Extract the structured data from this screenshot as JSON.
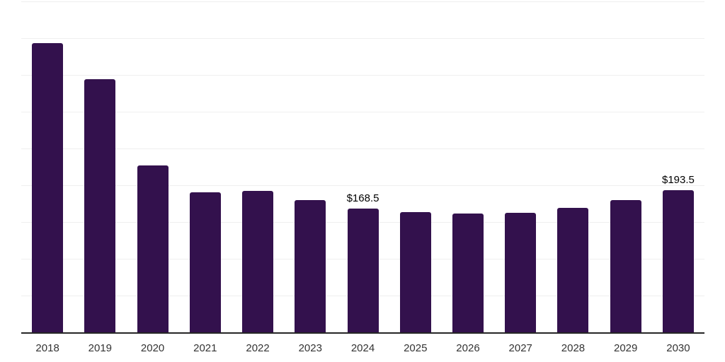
{
  "chart_data": {
    "type": "bar",
    "title": "",
    "xlabel": "",
    "ylabel": "",
    "categories": [
      "2018",
      "2019",
      "2020",
      "2021",
      "2022",
      "2023",
      "2024",
      "2025",
      "2026",
      "2027",
      "2028",
      "2029",
      "2030"
    ],
    "values": [
      393.5,
      344.0,
      227.0,
      190.5,
      192.5,
      180.0,
      168.5,
      163.5,
      161.5,
      162.5,
      169.5,
      180.0,
      193.5
    ],
    "data_labels": {
      "2024": "$168.5",
      "2030": "$193.5"
    },
    "ylim": [
      0,
      450
    ],
    "grid_step": 50,
    "grid": "on",
    "legend_position": "none",
    "colors": {
      "bar": "#33114d",
      "axis": "#262626",
      "gridline": "#efefef",
      "x_label": "#333333",
      "data_label": "#000000",
      "background": "#ffffff"
    }
  }
}
